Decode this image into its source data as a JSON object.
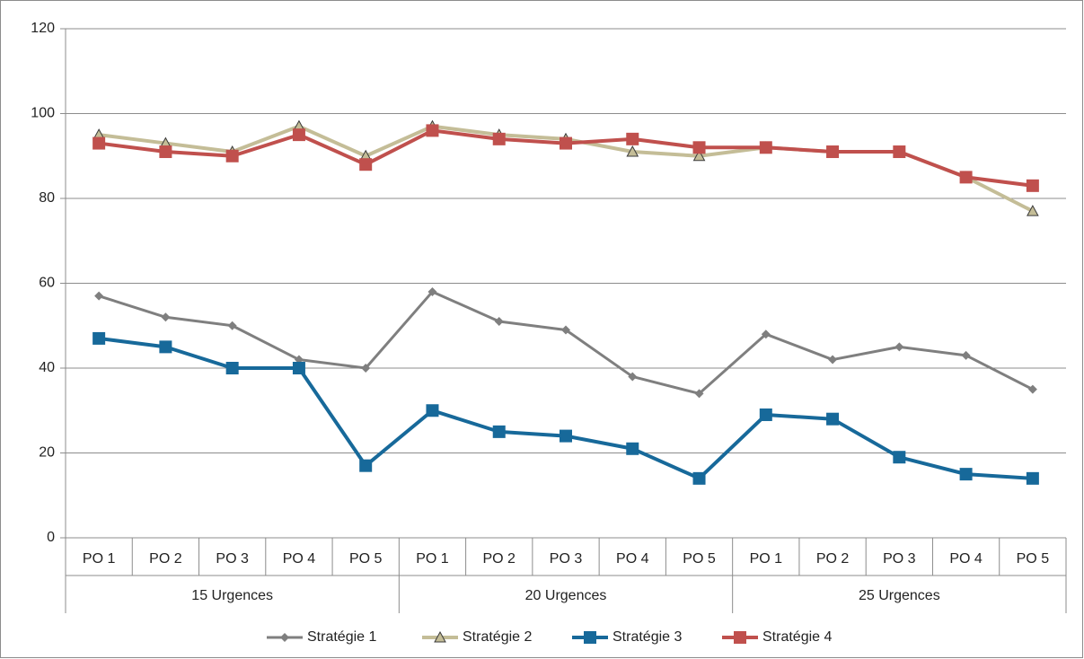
{
  "chart_data": {
    "type": "line",
    "categories": [
      "PO 1",
      "PO 2",
      "PO 3",
      "PO 4",
      "PO 5",
      "PO 1",
      "PO 2",
      "PO 3",
      "PO 4",
      "PO 5",
      "PO 1",
      "PO 2",
      "PO 3",
      "PO 4",
      "PO 5"
    ],
    "groups": [
      "15 Urgences",
      "20 Urgences",
      "25 Urgences"
    ],
    "series": [
      {
        "name": "Stratégie 1",
        "color": "#7f7f7f",
        "marker": "diamond",
        "values": [
          57,
          52,
          50,
          42,
          40,
          58,
          51,
          49,
          38,
          34,
          48,
          42,
          45,
          43,
          35
        ]
      },
      {
        "name": "Stratégie 2",
        "color": "#c4bd97",
        "marker": "triangle",
        "values": [
          95,
          93,
          91,
          97,
          90,
          97,
          95,
          94,
          91,
          90,
          92,
          91,
          91,
          85,
          77
        ]
      },
      {
        "name": "Stratégie 3",
        "color": "#17699a",
        "marker": "square",
        "values": [
          47,
          45,
          40,
          40,
          17,
          30,
          25,
          24,
          21,
          14,
          29,
          28,
          19,
          15,
          14
        ]
      },
      {
        "name": "Stratégie 4",
        "color": "#c0504d",
        "marker": "square",
        "values": [
          93,
          91,
          90,
          95,
          88,
          96,
          94,
          93,
          94,
          92,
          92,
          91,
          91,
          85,
          83
        ]
      }
    ],
    "ylim": [
      0,
      120
    ],
    "yticks": [
      0,
      20,
      40,
      60,
      80,
      100,
      120
    ],
    "grid": true,
    "legend": "bottom"
  }
}
